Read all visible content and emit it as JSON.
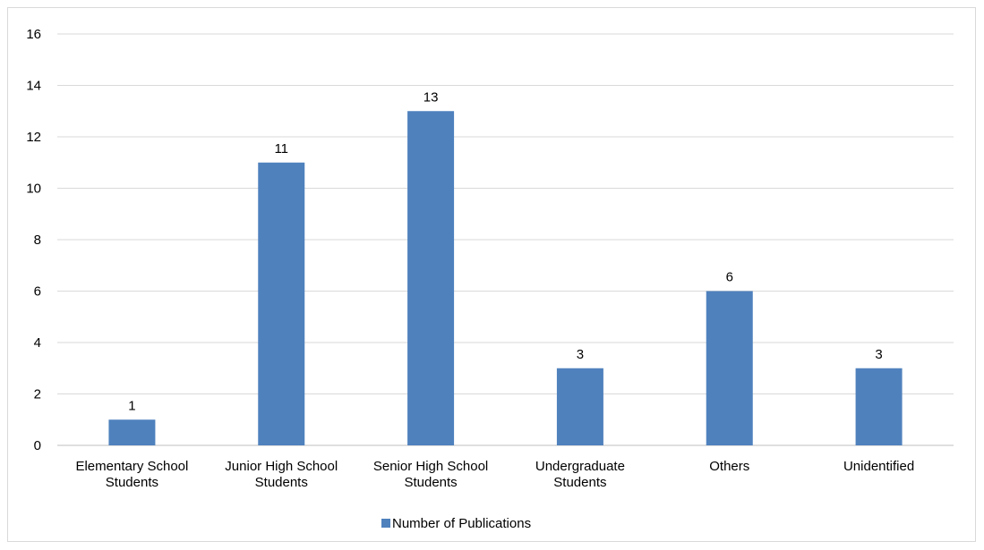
{
  "chart_data": {
    "type": "bar",
    "categories": [
      [
        "Elementary School",
        "Students"
      ],
      [
        "Junior High School",
        "Students"
      ],
      [
        "Senior High School",
        "Students"
      ],
      [
        "Undergraduate",
        "Students"
      ],
      [
        "Others"
      ],
      [
        "Unidentified"
      ]
    ],
    "series": [
      {
        "name": "Number of Publications",
        "values": [
          1,
          11,
          13,
          3,
          6,
          3
        ],
        "color": "#4f81bd"
      }
    ],
    "ylim": [
      0,
      16
    ],
    "yticks": [
      0,
      2,
      4,
      6,
      8,
      10,
      12,
      14,
      16
    ],
    "grid": true,
    "legend": "bottom",
    "data_labels": true
  }
}
